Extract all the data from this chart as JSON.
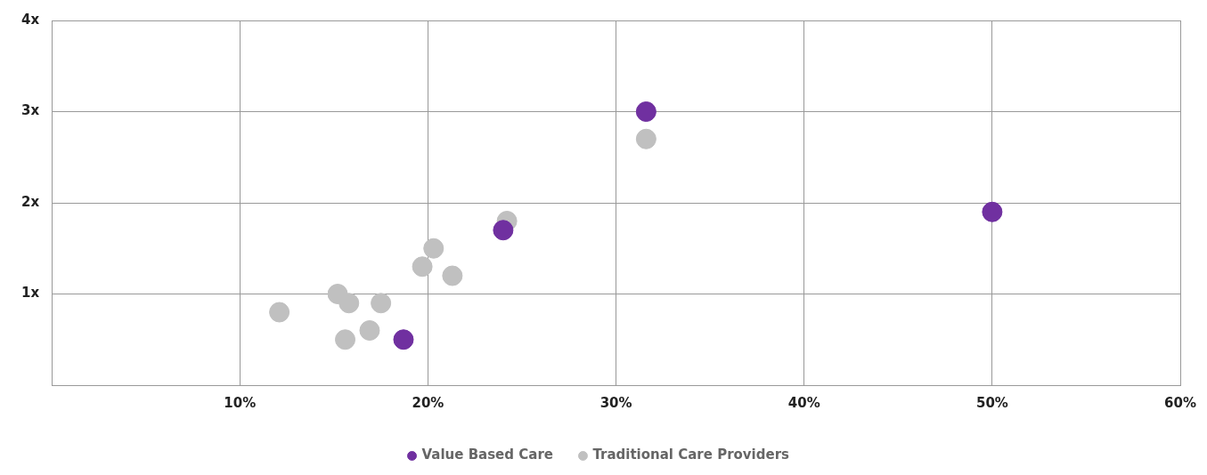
{
  "chart_data": {
    "type": "scatter",
    "marker": "circle",
    "grid": true,
    "legend": "bottom",
    "xlim": [
      0,
      60
    ],
    "ylim": [
      0,
      4
    ],
    "xticks": [
      {
        "value": 10,
        "label": "10%"
      },
      {
        "value": 20,
        "label": "20%"
      },
      {
        "value": 30,
        "label": "30%"
      },
      {
        "value": 40,
        "label": "40%"
      },
      {
        "value": 50,
        "label": "50%"
      },
      {
        "value": 60,
        "label": "60%"
      }
    ],
    "yticks": [
      {
        "value": 1,
        "label": "1x"
      },
      {
        "value": 2,
        "label": "2x"
      },
      {
        "value": 3,
        "label": "3x"
      },
      {
        "value": 4,
        "label": "4x"
      }
    ],
    "series": [
      {
        "name": "Value Based Care",
        "color": "#7030a0",
        "x": [
          31.6,
          24.0,
          50,
          18.7
        ],
        "values": [
          3.0,
          1.7,
          1.9,
          0.5
        ]
      },
      {
        "name": "Traditional Care Providers",
        "color": "#c0c0c0",
        "x": [
          31.6,
          24.2,
          20.3,
          19.7,
          21.3,
          15.2,
          15.8,
          17.5,
          12.1,
          16.9,
          15.6
        ],
        "values": [
          2.7,
          1.8,
          1.5,
          1.3,
          1.2,
          1.0,
          0.9,
          0.9,
          0.8,
          0.6,
          0.5
        ]
      }
    ]
  }
}
